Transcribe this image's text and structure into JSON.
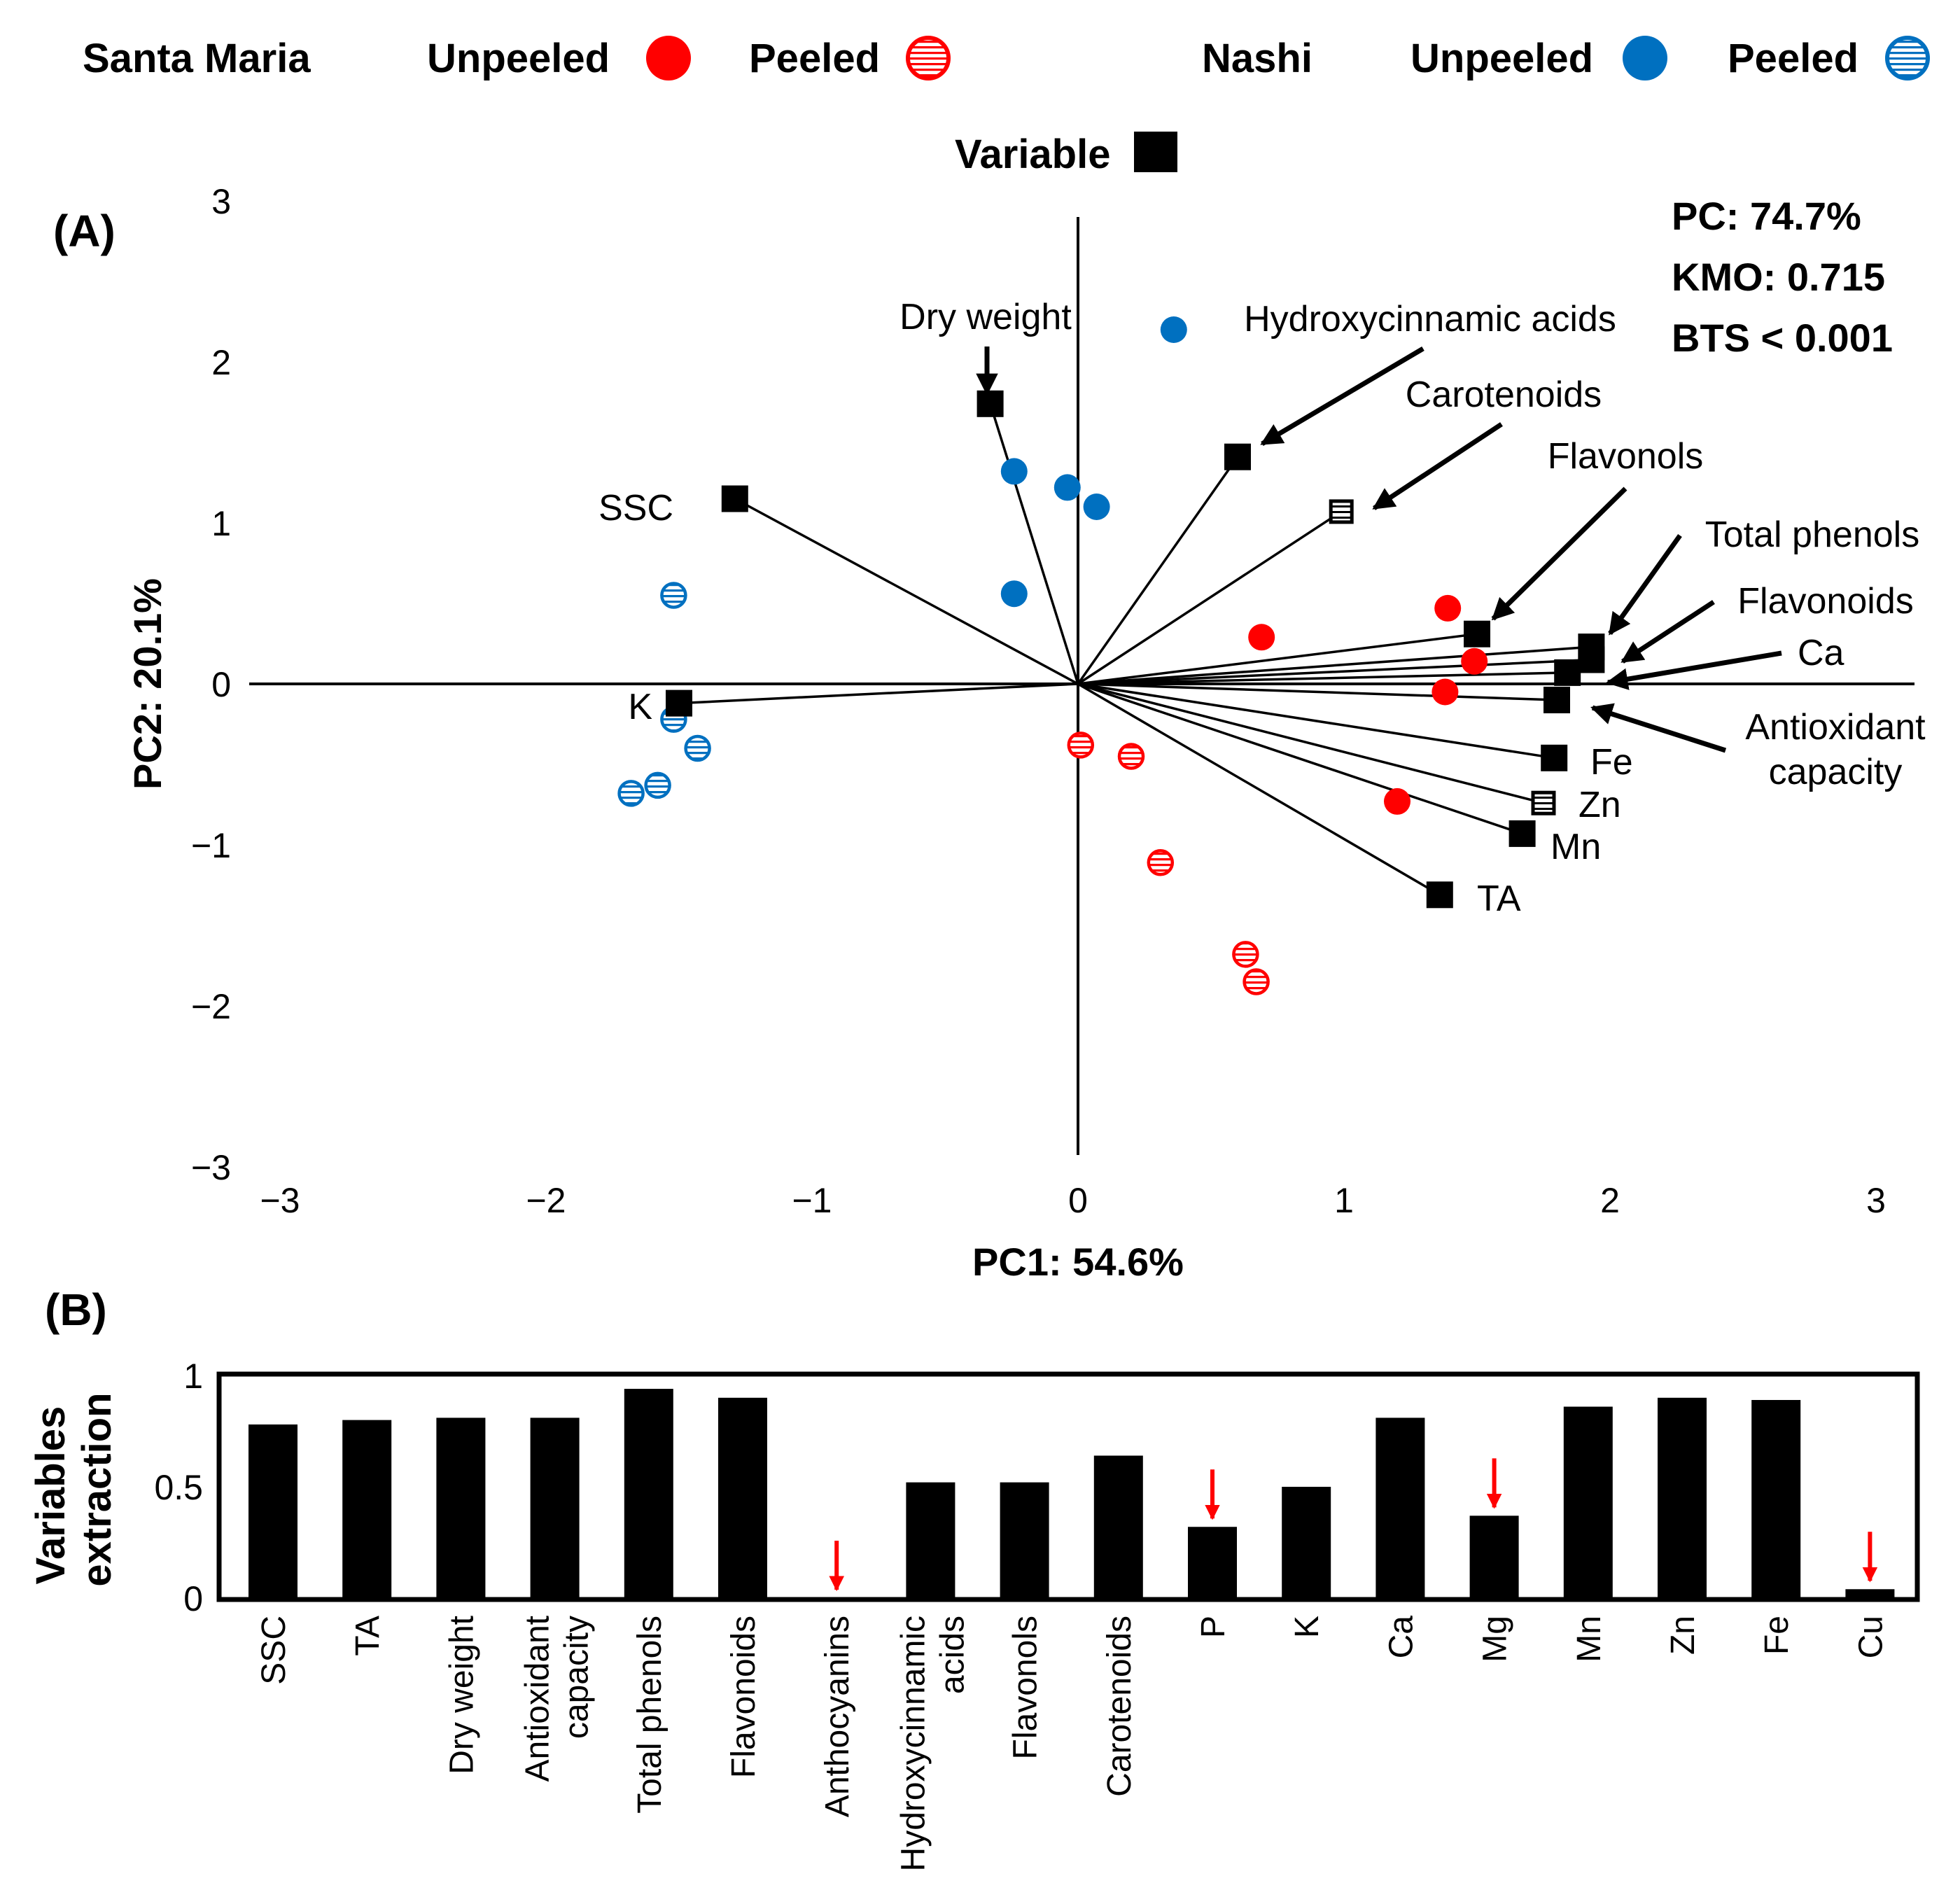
{
  "legend": {
    "group1": "Santa Maria",
    "group2": "Nashi",
    "unpeeled": "Unpeeled",
    "peeled": "Peeled",
    "variable": "Variable"
  },
  "colors": {
    "santa_maria": "#ff0000",
    "nashi": "#0070c0",
    "ink": "#000000"
  },
  "chart_data": [
    {
      "panel": "(A)",
      "type": "scatter",
      "xlabel": "PC1: 54.6%",
      "ylabel": "PC2: 20.1%",
      "xlim": [
        -3,
        3
      ],
      "ylim": [
        -3,
        3
      ],
      "xticks": [
        "−3",
        "−2",
        "−1",
        "0",
        "1",
        "2",
        "3"
      ],
      "yticks": [
        "−3",
        "−2",
        "−1",
        "0",
        "1",
        "2",
        "3"
      ],
      "stats": [
        "PC: 74.7%",
        "KMO: 0.715",
        "BTS < 0.001"
      ],
      "series": [
        {
          "name": "Santa Maria Unpeeled",
          "points": [
            [
              0.69,
              0.29
            ],
            [
              1.39,
              0.47
            ],
            [
              1.49,
              0.14
            ],
            [
              1.38,
              -0.05
            ],
            [
              1.2,
              -0.73
            ]
          ]
        },
        {
          "name": "Santa Maria Peeled",
          "points": [
            [
              0.01,
              -0.38
            ],
            [
              0.2,
              -0.45
            ],
            [
              0.31,
              -1.11
            ],
            [
              0.63,
              -1.68
            ],
            [
              0.67,
              -1.85
            ]
          ]
        },
        {
          "name": "Nashi Unpeeled",
          "points": [
            [
              0.36,
              2.2
            ],
            [
              -0.24,
              1.32
            ],
            [
              -0.04,
              1.22
            ],
            [
              0.07,
              1.1
            ],
            [
              -0.24,
              0.56
            ]
          ]
        },
        {
          "name": "Nashi Peeled",
          "points": [
            [
              -1.52,
              0.55
            ],
            [
              -1.52,
              -0.22
            ],
            [
              -1.43,
              -0.4
            ],
            [
              -1.58,
              -0.63
            ],
            [
              -1.68,
              -0.68
            ]
          ]
        }
      ],
      "variables": [
        {
          "label": "Dry weight",
          "x": -0.33,
          "y": 1.74
        },
        {
          "label": "Hydroxycinnamic acids",
          "x": 0.6,
          "y": 1.41
        },
        {
          "label": "Carotenoids",
          "x": 0.99,
          "y": 1.07
        },
        {
          "label": "Flavonols",
          "x": 1.5,
          "y": 0.31
        },
        {
          "label": "Total phenols",
          "x": 1.93,
          "y": 0.23
        },
        {
          "label": "Flavonoids",
          "x": 1.93,
          "y": 0.15
        },
        {
          "label": "Ca",
          "x": 1.84,
          "y": 0.07
        },
        {
          "label": "Antioxidant capacity",
          "x": 1.8,
          "y": -0.1
        },
        {
          "label": "Fe",
          "x": 1.79,
          "y": -0.46
        },
        {
          "label": "Zn",
          "x": 1.75,
          "y": -0.74
        },
        {
          "label": "Mn",
          "x": 1.67,
          "y": -0.93
        },
        {
          "label": "TA",
          "x": 1.36,
          "y": -1.31
        },
        {
          "label": "SSC",
          "x": -1.29,
          "y": 1.15
        },
        {
          "label": "K",
          "x": -1.5,
          "y": -0.12
        }
      ]
    },
    {
      "panel": "(B)",
      "type": "bar",
      "ylabel_line1": "Variables",
      "ylabel_line2": "extraction",
      "ylim": [
        0,
        1
      ],
      "yticks": [
        "0",
        "0.5",
        "1"
      ],
      "categories": [
        "SSC",
        "TA",
        "Dry weight",
        "Antioxidant\ncapacity",
        "Total phenols",
        "Flavonoids",
        "Anthocyanins",
        "Hydroxycinnamic\nacids",
        "Flavonols",
        "Carotenoids",
        "P",
        "K",
        "Ca",
        "Mg",
        "Mn",
        "Zn",
        "Fe",
        "Cu"
      ],
      "values": [
        0.78,
        0.8,
        0.81,
        0.81,
        0.94,
        0.9,
        0.0,
        0.52,
        0.52,
        0.64,
        0.32,
        0.5,
        0.81,
        0.37,
        0.86,
        0.9,
        0.89,
        0.04
      ],
      "flagged": [
        "Anthocyanins",
        "P",
        "Mg",
        "Cu"
      ]
    }
  ]
}
